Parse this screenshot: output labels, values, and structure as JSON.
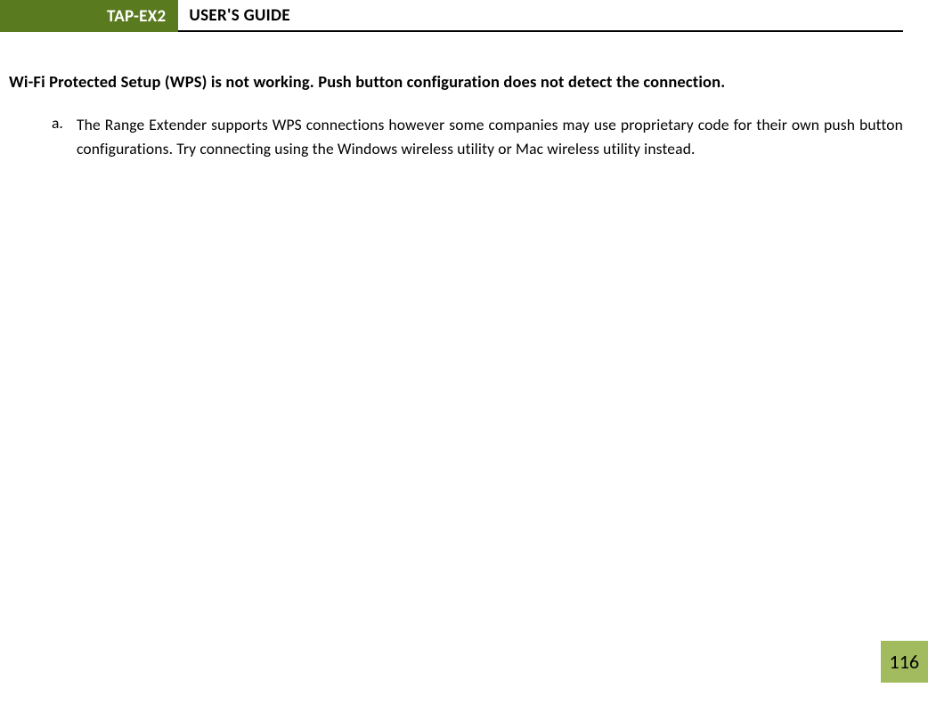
{
  "header": {
    "product": "TAP-EX2",
    "title": "USER'S GUIDE"
  },
  "section": {
    "heading": "Wi-Fi Protected Setup (WPS) is not working. Push button configuration does not detect the connection.",
    "list": [
      {
        "marker": "a.",
        "text": "The Range Extender supports WPS connections however some companies may use proprietary code for their own push button configurations. Try connecting using the Windows wireless utility or Mac wireless utility instead."
      }
    ]
  },
  "page_number": "116",
  "colors": {
    "header_bg": "#5a7a1f",
    "page_number_bg": "#a2bb5e",
    "text": "#000000",
    "header_text": "#ffffff",
    "border": "#000000",
    "background": "#ffffff"
  }
}
